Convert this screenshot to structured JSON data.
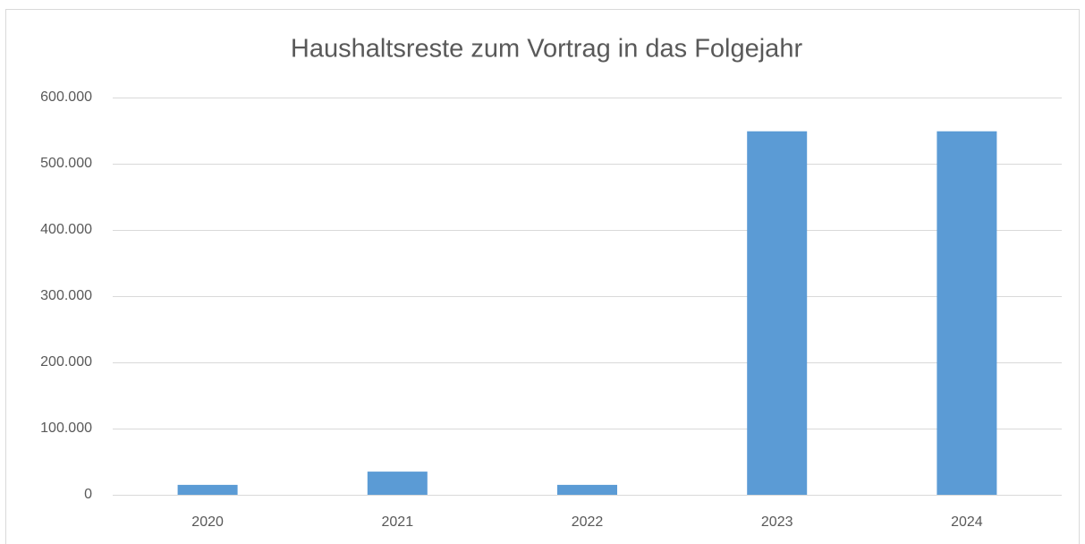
{
  "chart_data": {
    "type": "bar",
    "title": "Haushaltsreste zum Vortrag in das Folgejahr",
    "categories": [
      "2020",
      "2021",
      "2022",
      "2023",
      "2024"
    ],
    "values": [
      15000,
      35000,
      15000,
      549000,
      549000
    ],
    "color": "#5b9bd5",
    "ylim": [
      0,
      600000
    ],
    "yticks": [
      0,
      {
        "value": 100000,
        "label": "100.000"
      },
      {
        "value": 200000,
        "label": "200.000"
      },
      {
        "value": 300000,
        "label": "300.000"
      },
      {
        "value": 400000,
        "label": "400.000"
      },
      {
        "value": 500000,
        "label": "500.000"
      },
      {
        "value": 600000,
        "label": "600.000"
      }
    ],
    "grid": true
  }
}
